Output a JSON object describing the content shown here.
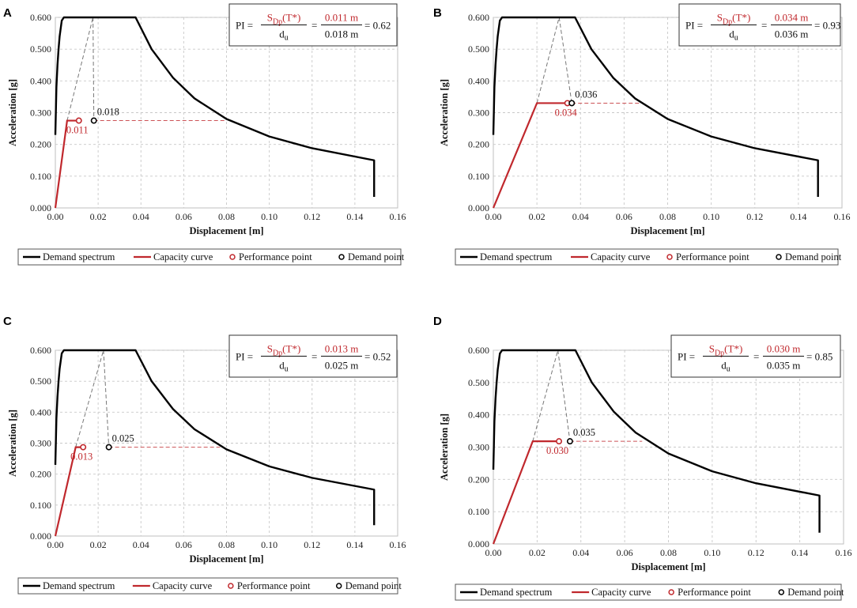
{
  "chart_data": [
    {
      "type": "line",
      "panel": "A",
      "xlabel": "Displacement [m]",
      "ylabel": "Acceleration [g]",
      "xlim": [
        0,
        0.16
      ],
      "ylim": [
        0,
        0.6
      ],
      "xticks": [
        "0.00",
        "0.02",
        "0.04",
        "0.06",
        "0.08",
        "0.10",
        "0.12",
        "0.14",
        "0.16"
      ],
      "yticks": [
        "0.000",
        "0.100",
        "0.200",
        "0.300",
        "0.400",
        "0.500",
        "0.600"
      ],
      "grid": true,
      "series": [
        {
          "name": "Demand spectrum",
          "color": "#000000",
          "x": [
            0,
            0.0005,
            0.001,
            0.0015,
            0.002,
            0.003,
            0.004,
            0.006,
            0.0085,
            0.011,
            0.014,
            0.017,
            0.02,
            0.025,
            0.03,
            0.0375,
            0.045,
            0.055,
            0.065,
            0.08,
            0.1,
            0.12,
            0.149,
            0.149
          ],
          "y": [
            0.23,
            0.38,
            0.45,
            0.5,
            0.54,
            0.59,
            0.6,
            0.6,
            0.6,
            0.6,
            0.6,
            0.6,
            0.6,
            0.6,
            0.6,
            0.6,
            0.5,
            0.41,
            0.345,
            0.28,
            0.225,
            0.188,
            0.15,
            0.035
          ]
        },
        {
          "name": "Capacity curve",
          "color": "#c0282d",
          "x": [
            0,
            0.0055,
            0.011
          ],
          "y": [
            0,
            0.275,
            0.275
          ]
        }
      ],
      "performance_point": {
        "x": 0.011,
        "y": 0.275,
        "label": "0.011"
      },
      "demand_point": {
        "x": 0.018,
        "y": 0.275,
        "label": "0.018"
      },
      "pi_formula": {
        "numerator": "S",
        "subscript": "Dp",
        "argument": "(T*)",
        "denominator": "du",
        "num_value": "0.011 m",
        "den_value": "0.018 m",
        "result": "= 0.62",
        "prefix": "PI =",
        "eq": "="
      },
      "legend": {
        "position": "bottom",
        "items": [
          "Demand spectrum",
          "Capacity curve",
          "Performance point",
          "Demand point"
        ]
      }
    },
    {
      "type": "line",
      "panel": "B",
      "xlabel": "Displacement [m]",
      "ylabel": "Acceleration [g]",
      "xlim": [
        0,
        0.16
      ],
      "ylim": [
        0,
        0.6
      ],
      "xticks": [
        "0.00",
        "0.02",
        "0.04",
        "0.06",
        "0.08",
        "0.10",
        "0.12",
        "0.14",
        "0.16"
      ],
      "yticks": [
        "0.000",
        "0.100",
        "0.200",
        "0.300",
        "0.400",
        "0.500",
        "0.600"
      ],
      "grid": true,
      "series": [
        {
          "name": "Demand spectrum",
          "color": "#000000",
          "x": [
            0,
            0.0005,
            0.001,
            0.0015,
            0.002,
            0.003,
            0.004,
            0.006,
            0.0085,
            0.011,
            0.014,
            0.017,
            0.02,
            0.025,
            0.03,
            0.0375,
            0.045,
            0.055,
            0.065,
            0.08,
            0.1,
            0.12,
            0.149,
            0.149
          ],
          "y": [
            0.23,
            0.38,
            0.45,
            0.5,
            0.54,
            0.59,
            0.6,
            0.6,
            0.6,
            0.6,
            0.6,
            0.6,
            0.6,
            0.6,
            0.6,
            0.6,
            0.5,
            0.41,
            0.345,
            0.28,
            0.225,
            0.188,
            0.15,
            0.035
          ]
        },
        {
          "name": "Capacity curve",
          "color": "#c0282d",
          "x": [
            0,
            0.02,
            0.034
          ],
          "y": [
            0,
            0.33,
            0.33
          ]
        }
      ],
      "performance_point": {
        "x": 0.034,
        "y": 0.33,
        "label": "0.034"
      },
      "demand_point": {
        "x": 0.036,
        "y": 0.33,
        "label": "0.036"
      },
      "pi_formula": {
        "numerator": "S",
        "subscript": "Dp",
        "argument": "(T*)",
        "denominator": "du",
        "num_value": "0.034 m",
        "den_value": "0.036 m",
        "result": "= 0.93",
        "prefix": "PI =",
        "eq": "="
      },
      "legend": {
        "position": "bottom",
        "items": [
          "Demand spectrum",
          "Capacity curve",
          "Performance point",
          "Demand point"
        ]
      }
    },
    {
      "type": "line",
      "panel": "C",
      "xlabel": "Displacement [m]",
      "ylabel": "Acceleration [g]",
      "xlim": [
        0,
        0.16
      ],
      "ylim": [
        0,
        0.6
      ],
      "xticks": [
        "0.00",
        "0.02",
        "0.04",
        "0.06",
        "0.08",
        "0.10",
        "0.12",
        "0.14",
        "0.16"
      ],
      "yticks": [
        "0.000",
        "0.100",
        "0.200",
        "0.300",
        "0.400",
        "0.500",
        "0.600"
      ],
      "grid": true,
      "series": [
        {
          "name": "Demand spectrum",
          "color": "#000000",
          "x": [
            0,
            0.0005,
            0.001,
            0.0015,
            0.002,
            0.003,
            0.004,
            0.006,
            0.0085,
            0.011,
            0.014,
            0.017,
            0.02,
            0.025,
            0.03,
            0.0375,
            0.045,
            0.055,
            0.065,
            0.08,
            0.1,
            0.12,
            0.149,
            0.149
          ],
          "y": [
            0.23,
            0.38,
            0.45,
            0.5,
            0.54,
            0.59,
            0.6,
            0.6,
            0.6,
            0.6,
            0.6,
            0.6,
            0.6,
            0.6,
            0.6,
            0.6,
            0.5,
            0.41,
            0.345,
            0.28,
            0.225,
            0.188,
            0.15,
            0.035
          ]
        },
        {
          "name": "Capacity curve",
          "color": "#c0282d",
          "x": [
            0,
            0.0095,
            0.013
          ],
          "y": [
            0,
            0.287,
            0.287
          ]
        }
      ],
      "performance_point": {
        "x": 0.013,
        "y": 0.287,
        "label": "0.013"
      },
      "demand_point": {
        "x": 0.025,
        "y": 0.287,
        "label": "0.025"
      },
      "pi_formula": {
        "numerator": "S",
        "subscript": "Dp",
        "argument": "(T*)",
        "denominator": "du",
        "num_value": "0.013 m",
        "den_value": "0.025 m",
        "result": "= 0.52",
        "prefix": "PI =",
        "eq": "="
      },
      "legend": {
        "position": "bottom",
        "items": [
          "Demand spectrum",
          "Capacity curve",
          "Performance point",
          "Demand point"
        ]
      }
    },
    {
      "type": "line",
      "panel": "D",
      "xlabel": "Displacement [m]",
      "ylabel": "Acceleration [g]",
      "xlim": [
        0,
        0.16
      ],
      "ylim": [
        0,
        0.6
      ],
      "xticks": [
        "0.00",
        "0.02",
        "0.04",
        "0.06",
        "0.08",
        "0.10",
        "0.12",
        "0.14",
        "0.16"
      ],
      "yticks": [
        "0.000",
        "0.100",
        "0.200",
        "0.300",
        "0.400",
        "0.500",
        "0.600"
      ],
      "grid": true,
      "series": [
        {
          "name": "Demand spectrum",
          "color": "#000000",
          "x": [
            0,
            0.0005,
            0.001,
            0.0015,
            0.002,
            0.003,
            0.004,
            0.006,
            0.0085,
            0.011,
            0.014,
            0.017,
            0.02,
            0.025,
            0.03,
            0.0375,
            0.045,
            0.055,
            0.065,
            0.08,
            0.1,
            0.12,
            0.149,
            0.149
          ],
          "y": [
            0.23,
            0.38,
            0.45,
            0.5,
            0.54,
            0.59,
            0.6,
            0.6,
            0.6,
            0.6,
            0.6,
            0.6,
            0.6,
            0.6,
            0.6,
            0.6,
            0.5,
            0.41,
            0.345,
            0.28,
            0.225,
            0.188,
            0.15,
            0.035
          ]
        },
        {
          "name": "Capacity curve",
          "color": "#c0282d",
          "x": [
            0,
            0.018,
            0.03
          ],
          "y": [
            0,
            0.318,
            0.318
          ]
        }
      ],
      "performance_point": {
        "x": 0.03,
        "y": 0.318,
        "label": "0.030"
      },
      "demand_point": {
        "x": 0.035,
        "y": 0.318,
        "label": "0.035"
      },
      "pi_formula": {
        "numerator": "S",
        "subscript": "Dp",
        "argument": "(T*)",
        "denominator": "du",
        "num_value": "0.030 m",
        "den_value": "0.035 m",
        "result": "= 0.85",
        "prefix": "PI =",
        "eq": "="
      },
      "legend": {
        "position": "bottom",
        "items": [
          "Demand spectrum",
          "Capacity curve",
          "Performance point",
          "Demand point"
        ]
      }
    }
  ]
}
